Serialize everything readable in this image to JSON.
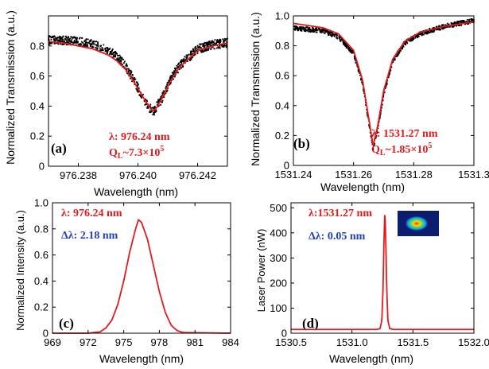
{
  "chart_data": [
    {
      "panel": "a",
      "type": "line",
      "xlabel": "Wavelength (nm)",
      "ylabel": "Normalized Transmission (a.u.)",
      "xlim": [
        976.237,
        976.243
      ],
      "ylim": [
        0,
        1.0
      ],
      "xticks": [
        "976.238",
        "976.240",
        "976.242"
      ],
      "xtick_values": [
        976.238,
        976.24,
        976.242
      ],
      "yticks": [
        "0",
        "0.2",
        "0.4",
        "0.6",
        "0.8"
      ],
      "ytick_values": [
        0,
        0.2,
        0.4,
        0.6,
        0.8
      ],
      "series": [
        {
          "style": "scatter-band",
          "color": "#000000",
          "x": [
            976.237,
            976.2375,
            976.238,
            976.2385,
            976.239,
            976.2393,
            976.2396,
            976.2399,
            976.2402,
            976.2405,
            976.2408,
            976.2411,
            976.2414,
            976.242,
            976.2425,
            976.243
          ],
          "y": [
            0.84,
            0.84,
            0.83,
            0.81,
            0.77,
            0.73,
            0.66,
            0.56,
            0.44,
            0.36,
            0.45,
            0.58,
            0.67,
            0.78,
            0.81,
            0.82
          ],
          "spread": 0.03
        },
        {
          "style": "line",
          "color": "#e31a1c",
          "x": [
            976.237,
            976.2375,
            976.238,
            976.2385,
            976.239,
            976.2393,
            976.2396,
            976.2399,
            976.2402,
            976.2404,
            976.2405,
            976.2406,
            976.2408,
            976.2411,
            976.2414,
            976.242,
            976.2425,
            976.243
          ],
          "y": [
            0.83,
            0.82,
            0.8,
            0.78,
            0.74,
            0.7,
            0.64,
            0.55,
            0.45,
            0.39,
            0.37,
            0.38,
            0.45,
            0.57,
            0.66,
            0.77,
            0.8,
            0.82
          ]
        }
      ],
      "annotations": [
        "λ: 976.24 nm",
        "Q_L~7.3×10^5"
      ],
      "label": "(a)"
    },
    {
      "panel": "b",
      "type": "line",
      "xlabel": "Wavelength (nm)",
      "ylabel": "Normalized Transmission (a.u.)",
      "xlim": [
        1531.24,
        1531.3
      ],
      "ylim": [
        0,
        1.0
      ],
      "xticks": [
        "1531.24",
        "1531.26",
        "1531.28",
        "1531.3"
      ],
      "xtick_values": [
        1531.24,
        1531.26,
        1531.28,
        1531.3
      ],
      "yticks": [
        "0",
        "0.2",
        "0.4",
        "0.6",
        "0.8",
        "1.0"
      ],
      "ytick_values": [
        0,
        0.2,
        0.4,
        0.6,
        0.8,
        1.0
      ],
      "series": [
        {
          "style": "scatter-band",
          "color": "#000000",
          "x": [
            1531.24,
            1531.25,
            1531.255,
            1531.26,
            1531.263,
            1531.265,
            1531.2665,
            1531.268,
            1531.27,
            1531.273,
            1531.277,
            1531.282,
            1531.29,
            1531.3
          ],
          "y": [
            0.92,
            0.9,
            0.86,
            0.75,
            0.55,
            0.3,
            0.12,
            0.25,
            0.48,
            0.7,
            0.82,
            0.88,
            0.93,
            0.97
          ],
          "spread": 0.015
        },
        {
          "style": "line",
          "color": "#e31a1c",
          "x": [
            1531.24,
            1531.25,
            1531.255,
            1531.26,
            1531.263,
            1531.265,
            1531.2665,
            1531.268,
            1531.27,
            1531.273,
            1531.277,
            1531.282,
            1531.29,
            1531.3
          ],
          "y": [
            0.95,
            0.92,
            0.88,
            0.77,
            0.57,
            0.32,
            0.13,
            0.26,
            0.5,
            0.71,
            0.83,
            0.89,
            0.93,
            0.96
          ]
        }
      ],
      "annotations": [
        "λ: 1531.27 nm",
        "Q_L~1.85×10^5"
      ],
      "label": "(b)"
    },
    {
      "panel": "c",
      "type": "line",
      "xlabel": "Wavelength (nm)",
      "ylabel": "Normalized Intensity (a.u.)",
      "xlim": [
        969,
        984
      ],
      "ylim": [
        0,
        1.0
      ],
      "xticks": [
        "969",
        "972",
        "975",
        "978",
        "981",
        "984"
      ],
      "xtick_values": [
        969,
        972,
        975,
        978,
        981,
        984
      ],
      "yticks": [
        "0",
        "0.2",
        "0.4",
        "0.6",
        "0.8",
        "1.0"
      ],
      "ytick_values": [
        0,
        0.2,
        0.4,
        0.6,
        0.8,
        1.0
      ],
      "series": [
        {
          "style": "line",
          "color": "#e31a1c",
          "x": [
            969,
            972,
            973,
            973.5,
            974,
            974.5,
            975,
            975.5,
            976,
            976.24,
            976.5,
            977,
            977.5,
            978,
            978.5,
            979,
            979.5,
            980,
            984
          ],
          "y": [
            0,
            0,
            0.01,
            0.04,
            0.1,
            0.22,
            0.4,
            0.62,
            0.8,
            0.87,
            0.85,
            0.72,
            0.52,
            0.32,
            0.16,
            0.06,
            0.02,
            0.005,
            0
          ]
        }
      ],
      "annotations": [
        "λ: 976.24 nm",
        "Δλ: 2.18 nm"
      ],
      "label": "(c)"
    },
    {
      "panel": "d",
      "type": "line",
      "xlabel": "Wavelength (nm)",
      "ylabel": "Laser Power (nW)",
      "xlim": [
        1530.5,
        1532.0
      ],
      "ylim": [
        0,
        520
      ],
      "xticks": [
        "1530.5",
        "1531.0",
        "1531.5",
        "1532.0"
      ],
      "xtick_values": [
        1530.5,
        1531.0,
        1531.5,
        1532.0
      ],
      "yticks": [
        "0",
        "100",
        "200",
        "300",
        "400",
        "500"
      ],
      "ytick_values": [
        0,
        100,
        200,
        300,
        400,
        500
      ],
      "series": [
        {
          "style": "line",
          "color": "#e31a1c",
          "x": [
            1530.5,
            1531.2,
            1531.23,
            1531.245,
            1531.255,
            1531.262,
            1531.27,
            1531.278,
            1531.285,
            1531.295,
            1531.31,
            1531.34,
            1532.0
          ],
          "y": [
            15,
            15,
            18,
            50,
            180,
            360,
            492,
            360,
            180,
            50,
            18,
            15,
            15
          ]
        }
      ],
      "annotations": [
        "λ:1531.27 nm",
        "Δλ: 0.05 nm"
      ],
      "label": "(d)"
    }
  ],
  "colors": {
    "fit": "#e31a1c",
    "data": "#000000",
    "blue_text": "#1f3fbf"
  }
}
